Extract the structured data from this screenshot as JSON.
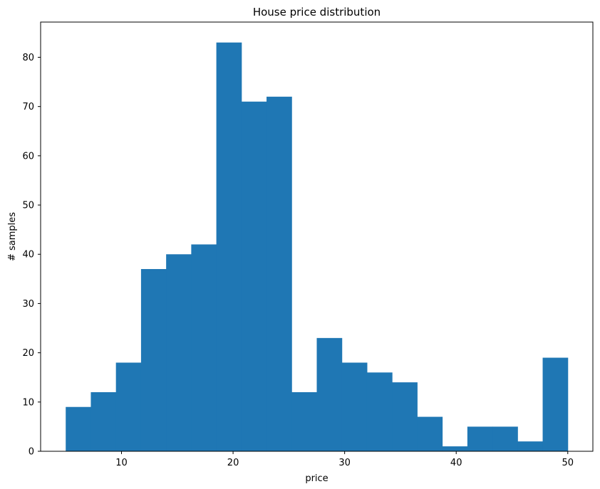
{
  "chart_data": {
    "type": "bar",
    "title": "House price distribution",
    "xlabel": "price",
    "ylabel": "# samples",
    "bin_edges": [
      5.0,
      7.25,
      9.5,
      11.75,
      14.0,
      16.25,
      18.5,
      20.75,
      23.0,
      25.25,
      27.5,
      29.75,
      32.0,
      34.25,
      36.5,
      38.75,
      41.0,
      43.25,
      45.5,
      47.75,
      50.0
    ],
    "values": [
      9,
      12,
      18,
      37,
      40,
      42,
      83,
      71,
      72,
      12,
      23,
      18,
      16,
      14,
      7,
      1,
      5,
      5,
      2,
      19
    ],
    "xlim": [
      2.75,
      52.25
    ],
    "ylim": [
      0,
      87.15
    ],
    "xticks": [
      10,
      20,
      30,
      40,
      50
    ],
    "yticks": [
      0,
      10,
      20,
      30,
      40,
      50,
      60,
      70,
      80
    ],
    "bar_color": "#1f77b4",
    "grid": false,
    "legend": "none"
  }
}
